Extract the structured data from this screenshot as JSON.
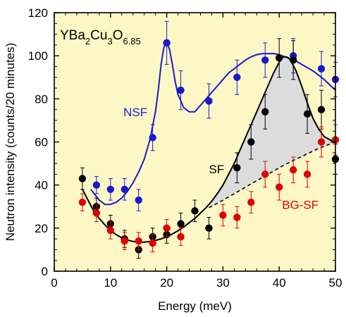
{
  "chart_data": {
    "type": "scatter",
    "title": "",
    "xlabel": "Energy (meV)",
    "ylabel": "Neutron intensity (counts/20 minutes)",
    "xlim": [
      0,
      50
    ],
    "ylim": [
      0,
      120
    ],
    "x_ticks": [
      0,
      10,
      20,
      30,
      40,
      50
    ],
    "y_ticks": [
      0,
      20,
      40,
      60,
      80,
      100,
      120
    ],
    "grid": false,
    "background": "#fdf7c6",
    "formula": {
      "base": "YBa",
      "sub1": "2",
      "mid1": "Cu",
      "sub2": "3",
      "mid2": "O",
      "sub3": "6.85"
    },
    "shaded_region": {
      "between": [
        "SF",
        "BG-SF"
      ],
      "x_range": [
        27.5,
        50
      ],
      "color": "#dcdcdc"
    },
    "series": [
      {
        "name": "NSF",
        "color": "#1a1acc",
        "label_pos": {
          "x": 12.3,
          "y": 72
        },
        "label_color": "#1a1acc",
        "points": [
          {
            "x": 7.5,
            "y": 40,
            "err": 4
          },
          {
            "x": 10,
            "y": 38,
            "err": 5
          },
          {
            "x": 12.5,
            "y": 38,
            "err": 5
          },
          {
            "x": 15,
            "y": 33,
            "err": 5
          },
          {
            "x": 17.5,
            "y": 62,
            "err": 6
          },
          {
            "x": 20,
            "y": 106,
            "err": 10
          },
          {
            "x": 22.5,
            "y": 84,
            "err": 9
          },
          {
            "x": 27.5,
            "y": 79,
            "err": 8
          },
          {
            "x": 32.5,
            "y": 90,
            "err": 8
          },
          {
            "x": 37.5,
            "y": 98,
            "err": 8
          },
          {
            "x": 42.5,
            "y": 100,
            "err": 8
          },
          {
            "x": 47.5,
            "y": 94,
            "err": 8
          },
          {
            "x": 50,
            "y": 89,
            "err": 8
          }
        ],
        "fit": [
          [
            6.5,
            38
          ],
          [
            8,
            33
          ],
          [
            9,
            31
          ],
          [
            10,
            31
          ],
          [
            11,
            32
          ],
          [
            12,
            34
          ],
          [
            13,
            37
          ],
          [
            14,
            41
          ],
          [
            15,
            46
          ],
          [
            16,
            52
          ],
          [
            17,
            61
          ],
          [
            18,
            74
          ],
          [
            18.5,
            84
          ],
          [
            19,
            96
          ],
          [
            19.5,
            104
          ],
          [
            20,
            106
          ],
          [
            20.5,
            103
          ],
          [
            21,
            96
          ],
          [
            21.5,
            88
          ],
          [
            22,
            82
          ],
          [
            22.5,
            79
          ],
          [
            23,
            76
          ],
          [
            24,
            74
          ],
          [
            25,
            74
          ],
          [
            26,
            77
          ],
          [
            27,
            80
          ],
          [
            28,
            83
          ],
          [
            29,
            86
          ],
          [
            30,
            89
          ],
          [
            31,
            92
          ],
          [
            32,
            94
          ],
          [
            33,
            96
          ],
          [
            34,
            98
          ],
          [
            35,
            99.5
          ],
          [
            36,
            100.5
          ],
          [
            37,
            101
          ],
          [
            38,
            101
          ],
          [
            39,
            101
          ],
          [
            40,
            100.5
          ],
          [
            41,
            99.5
          ],
          [
            42,
            98.5
          ],
          [
            43,
            97.5
          ],
          [
            44,
            96
          ],
          [
            45,
            94.5
          ],
          [
            46,
            93
          ],
          [
            47,
            91
          ],
          [
            48,
            89
          ],
          [
            49,
            86.5
          ],
          [
            50,
            84
          ]
        ]
      },
      {
        "name": "SF",
        "color": "#000000",
        "label_pos": {
          "x": 27.5,
          "y": 45.5
        },
        "label_color": "#000000",
        "points": [
          {
            "x": 5,
            "y": 43,
            "err": 5
          },
          {
            "x": 7.5,
            "y": 30,
            "err": 4
          },
          {
            "x": 10,
            "y": 22,
            "err": 4
          },
          {
            "x": 12.5,
            "y": 15,
            "err": 4
          },
          {
            "x": 15,
            "y": 10,
            "err": 4
          },
          {
            "x": 17.5,
            "y": 16,
            "err": 4
          },
          {
            "x": 20,
            "y": 17,
            "err": 4
          },
          {
            "x": 22.5,
            "y": 22,
            "err": 5
          },
          {
            "x": 25,
            "y": 28,
            "err": 5
          },
          {
            "x": 27.5,
            "y": 20,
            "err": 5
          },
          {
            "x": 32.5,
            "y": 48,
            "err": 7
          },
          {
            "x": 35,
            "y": 60,
            "err": 8
          },
          {
            "x": 37.5,
            "y": 74,
            "err": 8
          },
          {
            "x": 40,
            "y": 99,
            "err": 9
          },
          {
            "x": 42.5,
            "y": 98,
            "err": 9
          },
          {
            "x": 45,
            "y": 73,
            "err": 9
          },
          {
            "x": 47.5,
            "y": 75,
            "err": 9
          },
          {
            "x": 50,
            "y": 52,
            "err": 7
          }
        ],
        "fit": [
          [
            5,
            38
          ],
          [
            6,
            33
          ],
          [
            7,
            28
          ],
          [
            8,
            24.5
          ],
          [
            9,
            21.5
          ],
          [
            10,
            19
          ],
          [
            11,
            17
          ],
          [
            12,
            15.5
          ],
          [
            13,
            14.5
          ],
          [
            14,
            13.8
          ],
          [
            15,
            13.5
          ],
          [
            16,
            13.5
          ],
          [
            17,
            13.8
          ],
          [
            18,
            14.3
          ],
          [
            19,
            15
          ],
          [
            20,
            16
          ],
          [
            21,
            17.3
          ],
          [
            22,
            18.8
          ],
          [
            23,
            20.5
          ],
          [
            24,
            22.5
          ],
          [
            25,
            24.5
          ],
          [
            26,
            27
          ],
          [
            27,
            29.5
          ],
          [
            28,
            32.5
          ],
          [
            29,
            36
          ],
          [
            30,
            40
          ],
          [
            31,
            45
          ],
          [
            32,
            50
          ],
          [
            33,
            56
          ],
          [
            34,
            62
          ],
          [
            35,
            68
          ],
          [
            36,
            74
          ],
          [
            37,
            80
          ],
          [
            38,
            86
          ],
          [
            39,
            92
          ],
          [
            40,
            97
          ],
          [
            40.5,
            99
          ],
          [
            41,
            99.6
          ],
          [
            41.5,
            99.3
          ],
          [
            42,
            98
          ],
          [
            43,
            93
          ],
          [
            44,
            86
          ],
          [
            45,
            78
          ],
          [
            46,
            71
          ],
          [
            47,
            66
          ],
          [
            48,
            62.5
          ],
          [
            49,
            61
          ],
          [
            50,
            60
          ]
        ]
      },
      {
        "name": "BG-SF",
        "color": "#dd0000",
        "label_pos": {
          "x": 40.5,
          "y": 29
        },
        "label_color": "#dd0000",
        "points": [
          {
            "x": 5,
            "y": 32,
            "err": 4
          },
          {
            "x": 7.5,
            "y": 27,
            "err": 4
          },
          {
            "x": 10,
            "y": 19,
            "err": 4
          },
          {
            "x": 12.5,
            "y": 14,
            "err": 4
          },
          {
            "x": 15,
            "y": 14,
            "err": 4
          },
          {
            "x": 17.5,
            "y": 13,
            "err": 4
          },
          {
            "x": 20,
            "y": 20,
            "err": 4
          },
          {
            "x": 22.5,
            "y": 16,
            "err": 4
          },
          {
            "x": 30,
            "y": 26,
            "err": 5
          },
          {
            "x": 32.5,
            "y": 25,
            "err": 5
          },
          {
            "x": 35,
            "y": 32,
            "err": 5
          },
          {
            "x": 37.5,
            "y": 45,
            "err": 6
          },
          {
            "x": 40,
            "y": 39,
            "err": 6
          },
          {
            "x": 42.5,
            "y": 47,
            "err": 6
          },
          {
            "x": 45,
            "y": 45,
            "err": 6
          },
          {
            "x": 47.5,
            "y": 60,
            "err": 7
          },
          {
            "x": 50,
            "y": 61,
            "err": 7
          }
        ],
        "fit_style": "dashed",
        "fit": [
          [
            27.5,
            29.5
          ],
          [
            29,
            31.5
          ],
          [
            31,
            34.5
          ],
          [
            33,
            37.5
          ],
          [
            35,
            40.5
          ],
          [
            37,
            43.5
          ],
          [
            39,
            46.5
          ],
          [
            41,
            49.5
          ],
          [
            43,
            52
          ],
          [
            45,
            54.5
          ],
          [
            47,
            57
          ],
          [
            49,
            59
          ],
          [
            50,
            60
          ]
        ]
      }
    ]
  }
}
